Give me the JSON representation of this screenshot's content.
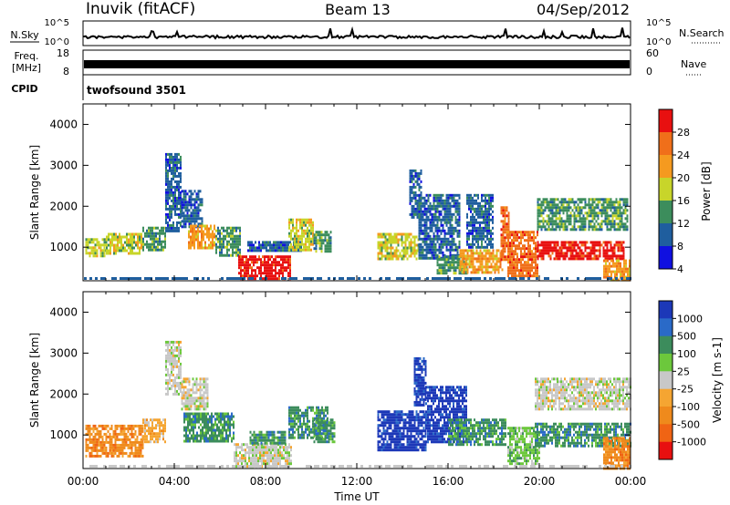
{
  "header": {
    "station": "Inuvik (fitACF)",
    "beam": "Beam 13",
    "date": "04/Sep/2012"
  },
  "status_panels": {
    "nsky": {
      "left_label": "N.Sky",
      "left_ticks": [
        "10^5",
        "10^0"
      ],
      "right_label": "N.Search",
      "right_ticks": [
        "10^5",
        "10^0"
      ]
    },
    "freq": {
      "left_label_lines": [
        "Freq.",
        "[MHz]"
      ],
      "left_ticks": [
        "18",
        "8"
      ],
      "right_label": "Nave",
      "right_ticks": [
        "60",
        "0"
      ]
    },
    "cpid": {
      "label": "CPID",
      "value": "twofsound 3501"
    }
  },
  "chart_data": [
    {
      "type": "heatmap",
      "name": "power",
      "title": "",
      "xlabel": "",
      "ylabel": "Slant Range [km]",
      "xlim": [
        "00:00",
        "24:00"
      ],
      "ylim": [
        180,
        4500
      ],
      "y_ticks": [
        1000,
        2000,
        3000,
        4000
      ],
      "colorbar": {
        "label": "Power [dB]",
        "ticks": [
          "28",
          "24",
          "20",
          "16",
          "12",
          "8",
          "4"
        ],
        "colors": [
          "#e81010",
          "#f06f1a",
          "#f59a1f",
          "#c8d52a",
          "#3c8d5c",
          "#1f5e9e",
          "#1010e0"
        ]
      },
      "regions": [
        {
          "t": [
            0.1,
            1.0
          ],
          "r": [
            780,
            1220
          ],
          "level": 3
        },
        {
          "t": [
            1.0,
            2.6
          ],
          "r": [
            850,
            1350
          ],
          "level": 3
        },
        {
          "t": [
            2.6,
            3.6
          ],
          "r": [
            900,
            1500
          ],
          "level": 4
        },
        {
          "t": [
            3.6,
            4.3
          ],
          "r": [
            1400,
            3300
          ],
          "level": 5
        },
        {
          "t": [
            4.3,
            5.2
          ],
          "r": [
            1500,
            2400
          ],
          "level": 5
        },
        {
          "t": [
            4.6,
            5.8
          ],
          "r": [
            950,
            1550
          ],
          "level": 2
        },
        {
          "t": [
            5.8,
            6.9
          ],
          "r": [
            800,
            1500
          ],
          "level": 4
        },
        {
          "t": [
            6.8,
            9.1
          ],
          "r": [
            260,
            800
          ],
          "level": 0
        },
        {
          "t": [
            7.2,
            9.6
          ],
          "r": [
            900,
            1150
          ],
          "level": 5
        },
        {
          "t": [
            9.0,
            10.1
          ],
          "r": [
            900,
            1700
          ],
          "level": 3
        },
        {
          "t": [
            10.1,
            10.9
          ],
          "r": [
            900,
            1400
          ],
          "level": 4
        },
        {
          "t": [
            12.9,
            14.7
          ],
          "r": [
            700,
            1350
          ],
          "level": 3
        },
        {
          "t": [
            14.3,
            14.8
          ],
          "r": [
            1700,
            2900
          ],
          "level": 5
        },
        {
          "t": [
            14.7,
            16.5
          ],
          "r": [
            700,
            2300
          ],
          "level": 5
        },
        {
          "t": [
            15.5,
            16.8
          ],
          "r": [
            350,
            800
          ],
          "level": 4
        },
        {
          "t": [
            16.5,
            18.4
          ],
          "r": [
            350,
            950
          ],
          "level": 2
        },
        {
          "t": [
            16.8,
            18.0
          ],
          "r": [
            1000,
            2300
          ],
          "level": 5
        },
        {
          "t": [
            18.3,
            18.7
          ],
          "r": [
            700,
            2000
          ],
          "level": 1
        },
        {
          "t": [
            18.6,
            19.9
          ],
          "r": [
            300,
            1400
          ],
          "level": 1
        },
        {
          "t": [
            19.9,
            23.7
          ],
          "r": [
            700,
            1150
          ],
          "level": 0
        },
        {
          "t": [
            19.9,
            23.9
          ],
          "r": [
            1400,
            2200
          ],
          "level": 4
        },
        {
          "t": [
            22.8,
            24.0
          ],
          "r": [
            200,
            700
          ],
          "level": 2
        }
      ]
    },
    {
      "type": "heatmap",
      "name": "velocity",
      "title": "",
      "xlabel": "Time UT",
      "ylabel": "Slant Range [km]",
      "xlim": [
        "00:00",
        "24:00"
      ],
      "ylim": [
        180,
        4500
      ],
      "x_ticks": [
        "00:00",
        "04:00",
        "08:00",
        "12:00",
        "16:00",
        "20:00",
        "00:00"
      ],
      "y_ticks": [
        1000,
        2000,
        3000,
        4000
      ],
      "colorbar": {
        "label": "Velocity [m s-1]",
        "ticks": [
          "1000",
          "500",
          "100",
          "25",
          "-25",
          "-100",
          "-500",
          "-1000"
        ],
        "colors": [
          "#1c38b8",
          "#2a6ac8",
          "#3c8c5c",
          "#6cc83c",
          "#c8c8c8",
          "#f5a532",
          "#ef8a1c",
          "#f06414",
          "#e81010"
        ]
      },
      "regions": [
        {
          "t": [
            0.1,
            2.6
          ],
          "r": [
            500,
            1250
          ],
          "level": 6
        },
        {
          "t": [
            2.6,
            3.6
          ],
          "r": [
            800,
            1400
          ],
          "level": 5
        },
        {
          "t": [
            3.6,
            4.3
          ],
          "r": [
            2000,
            3300
          ],
          "level": 4
        },
        {
          "t": [
            4.3,
            5.5
          ],
          "r": [
            1600,
            2400
          ],
          "level": 4
        },
        {
          "t": [
            4.4,
            6.6
          ],
          "r": [
            850,
            1550
          ],
          "level": 2
        },
        {
          "t": [
            6.6,
            9.1
          ],
          "r": [
            260,
            800
          ],
          "level": 4
        },
        {
          "t": [
            7.3,
            8.9
          ],
          "r": [
            800,
            1100
          ],
          "level": 2
        },
        {
          "t": [
            9.0,
            10.7
          ],
          "r": [
            900,
            1700
          ],
          "level": 2
        },
        {
          "t": [
            10.1,
            11.0
          ],
          "r": [
            850,
            1400
          ],
          "level": 2
        },
        {
          "t": [
            12.9,
            15.0
          ],
          "r": [
            650,
            1600
          ],
          "level": 0
        },
        {
          "t": [
            14.5,
            15.0
          ],
          "r": [
            1700,
            2900
          ],
          "level": 0
        },
        {
          "t": [
            15.0,
            16.8
          ],
          "r": [
            800,
            2200
          ],
          "level": 0
        },
        {
          "t": [
            16.0,
            18.5
          ],
          "r": [
            750,
            1400
          ],
          "level": 2
        },
        {
          "t": [
            18.6,
            20.0
          ],
          "r": [
            300,
            1200
          ],
          "level": 3
        },
        {
          "t": [
            19.8,
            24.0
          ],
          "r": [
            700,
            1300
          ],
          "level": 2
        },
        {
          "t": [
            19.8,
            24.0
          ],
          "r": [
            1600,
            2400
          ],
          "level": 4
        },
        {
          "t": [
            22.8,
            24.0
          ],
          "r": [
            200,
            950
          ],
          "level": 6
        }
      ]
    }
  ]
}
